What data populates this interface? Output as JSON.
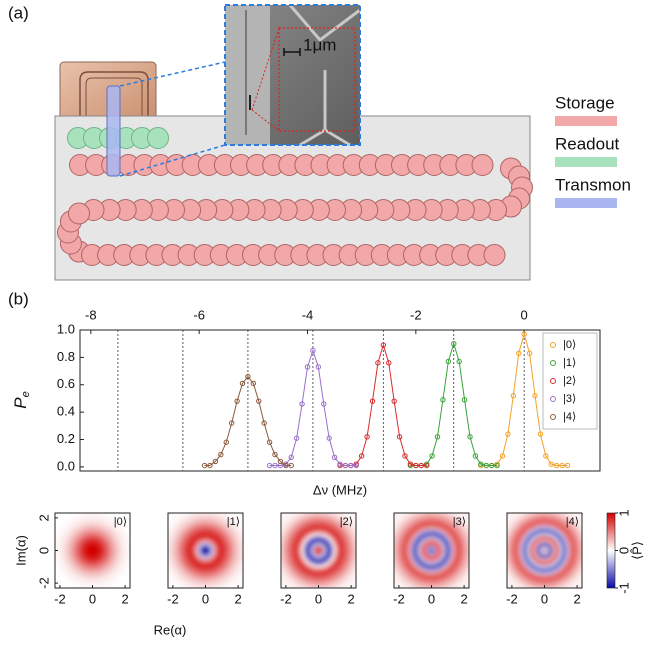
{
  "diagram": {
    "label": "(a)",
    "scale_bar": "1μm",
    "legend": [
      {
        "name": "Storage",
        "color": "#f2a8a8"
      },
      {
        "name": "Readout",
        "color": "#a8e2bc"
      },
      {
        "name": "Transmon",
        "color": "#a9b6f2"
      }
    ]
  },
  "chart_data": [
    {
      "type": "line",
      "panel_label": "(b)",
      "ylabel": "P",
      "ylabel_sub": "e",
      "xlabel": "Δν (MHz)",
      "xlim": [
        -8.2,
        1.4
      ],
      "xticks": [
        -8,
        -6,
        -4,
        -2,
        0
      ],
      "ylim": [
        -0.03,
        1.0
      ],
      "yticks": [
        {
          "value": 0,
          "label": "0.0"
        },
        {
          "value": 0.2,
          "label": "0.2"
        },
        {
          "value": 0.4,
          "label": "0.4"
        },
        {
          "value": 0.6,
          "label": "0.6"
        },
        {
          "value": 0.8,
          "label": "0.8"
        },
        {
          "value": 1.0,
          "label": "1.0"
        }
      ],
      "vlines": [
        -7.5,
        -6.3,
        -5.1,
        -3.9,
        -2.6,
        -1.3,
        0
      ],
      "legend": "upper right",
      "series": [
        {
          "name": "|0⟩",
          "color": "#f5a02a",
          "x": [
            -0.8,
            -0.7,
            -0.6,
            -0.5,
            -0.4,
            -0.3,
            -0.2,
            -0.1,
            0,
            0.1,
            0.2,
            0.3,
            0.4,
            0.5,
            0.6,
            0.7,
            0.8
          ],
          "values": [
            0.01,
            0.01,
            0.01,
            0.02,
            0.08,
            0.24,
            0.52,
            0.83,
            0.97,
            0.83,
            0.52,
            0.24,
            0.08,
            0.02,
            0.01,
            0.01,
            0.01
          ]
        },
        {
          "name": "|1⟩",
          "color": "#3aa33a",
          "x": [
            -2.1,
            -2.0,
            -1.9,
            -1.8,
            -1.7,
            -1.6,
            -1.5,
            -1.4,
            -1.3,
            -1.2,
            -1.1,
            -1.0,
            -0.9,
            -0.8,
            -0.7,
            -0.6,
            -0.5
          ],
          "values": [
            0.01,
            0.01,
            0.01,
            0.02,
            0.08,
            0.22,
            0.49,
            0.77,
            0.9,
            0.77,
            0.49,
            0.22,
            0.08,
            0.02,
            0.01,
            0.01,
            0.01
          ]
        },
        {
          "name": "|2⟩",
          "color": "#d92b2b",
          "x": [
            -3.4,
            -3.3,
            -3.2,
            -3.1,
            -3.0,
            -2.9,
            -2.8,
            -2.7,
            -2.6,
            -2.5,
            -2.4,
            -2.3,
            -2.2,
            -2.1,
            -2.0,
            -1.9,
            -1.8
          ],
          "values": [
            0.01,
            0.01,
            0.01,
            0.02,
            0.08,
            0.22,
            0.48,
            0.76,
            0.89,
            0.76,
            0.48,
            0.22,
            0.08,
            0.02,
            0.01,
            0.01,
            0.01
          ]
        },
        {
          "name": "|3⟩",
          "color": "#9a6fcb",
          "x": [
            -4.7,
            -4.6,
            -4.5,
            -4.4,
            -4.3,
            -4.2,
            -4.1,
            -4.0,
            -3.9,
            -3.8,
            -3.7,
            -3.6,
            -3.5,
            -3.4,
            -3.3,
            -3.2,
            -3.1
          ],
          "values": [
            0.01,
            0.01,
            0.01,
            0.02,
            0.07,
            0.21,
            0.46,
            0.73,
            0.85,
            0.73,
            0.46,
            0.21,
            0.07,
            0.02,
            0.01,
            0.01,
            0.01
          ]
        },
        {
          "name": "|4⟩",
          "color": "#8b5a3c",
          "x": [
            -5.9,
            -5.8,
            -5.7,
            -5.6,
            -5.5,
            -5.4,
            -5.3,
            -5.2,
            -5.1,
            -5.0,
            -4.9,
            -4.8,
            -4.7,
            -4.6,
            -4.5,
            -4.4,
            -4.3
          ],
          "values": [
            0.01,
            0.01,
            0.04,
            0.09,
            0.18,
            0.32,
            0.48,
            0.61,
            0.66,
            0.61,
            0.48,
            0.32,
            0.18,
            0.09,
            0.04,
            0.01,
            0.01
          ]
        }
      ]
    },
    {
      "type": "radial-heatmap",
      "xlabel": "Re(α)",
      "ylabel": "Im(α)",
      "xlim": [
        -2.3,
        2.3
      ],
      "ylim": [
        -2.3,
        2.3
      ],
      "xticks": [
        -2,
        0,
        2
      ],
      "yticks": [
        -2,
        0,
        2
      ],
      "r": [
        0,
        0.2,
        0.4,
        0.6,
        0.8,
        1.0,
        1.2,
        1.4,
        1.6,
        1.8,
        2.0,
        2.2,
        2.4,
        2.6,
        2.8
      ],
      "colorbar": {
        "label": "⟨P̂⟩",
        "lim": [
          -1,
          1
        ],
        "ticks": [
          1,
          0,
          -1
        ],
        "colors": [
          "#0a0aa8",
          "#ffffff",
          "#d40000"
        ]
      },
      "panels": [
        {
          "label": "|0⟩",
          "values": [
            1,
            1,
            0.95,
            0.85,
            0.7,
            0.55,
            0.4,
            0.28,
            0.18,
            0.1,
            0.06,
            0.03,
            0.01,
            0,
            0
          ]
        },
        {
          "label": "|1⟩",
          "values": [
            -1,
            -0.9,
            -0.3,
            0.4,
            0.8,
            0.85,
            0.75,
            0.6,
            0.45,
            0.3,
            0.2,
            0.12,
            0.06,
            0.03,
            0.01
          ]
        },
        {
          "label": "|2⟩",
          "values": [
            1,
            0.6,
            -0.3,
            -0.8,
            -0.6,
            0.1,
            0.6,
            0.8,
            0.7,
            0.55,
            0.4,
            0.25,
            0.15,
            0.08,
            0.04
          ]
        },
        {
          "label": "|3⟩",
          "values": [
            -1,
            -0.4,
            0.6,
            0.5,
            -0.3,
            -0.8,
            -0.4,
            0.4,
            0.7,
            0.6,
            0.45,
            0.3,
            0.2,
            0.1,
            0.05
          ]
        },
        {
          "label": "|4⟩",
          "values": [
            1,
            -0.2,
            -0.8,
            0.3,
            0.7,
            -0.2,
            -0.7,
            -0.3,
            0.5,
            0.65,
            0.5,
            0.35,
            0.2,
            0.1,
            0.05
          ]
        }
      ]
    }
  ]
}
